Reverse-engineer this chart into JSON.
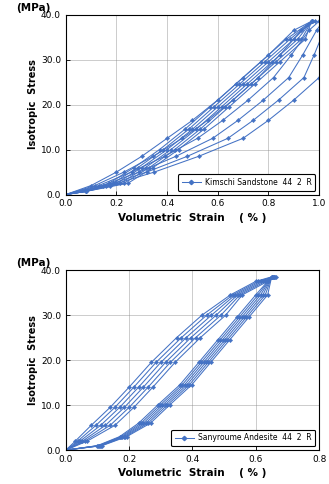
{
  "chart1": {
    "legend": "Kimschi Sandstone  44  2  R",
    "xlim": [
      0.0,
      1.0
    ],
    "ylim": [
      0.0,
      40.0
    ],
    "xlabel": "Volumetric  Strain    ( % )",
    "ylabel_top": "(MPa)",
    "ylabel_main": "Isotropic  Stress",
    "xticks": [
      0.0,
      0.2,
      0.4,
      0.6,
      0.8,
      1.0
    ],
    "yticks": [
      0.0,
      10.0,
      20.0,
      30.0,
      40.0
    ],
    "n_cycles": 6,
    "load_x_base": [
      0.0,
      0.1,
      0.2,
      0.3,
      0.4,
      0.5,
      0.6,
      0.7,
      0.8,
      0.9,
      0.97
    ],
    "load_y_base": [
      0.0,
      2.0,
      5.0,
      8.5,
      12.5,
      16.5,
      21.0,
      26.0,
      31.0,
      36.5,
      38.5
    ],
    "load_x_spread": [
      0.0,
      0.01,
      0.02,
      0.03,
      0.04,
      0.04,
      0.04,
      0.04,
      0.03,
      0.02,
      0.01
    ],
    "unload_x_base": [
      0.97,
      0.87,
      0.77,
      0.67,
      0.57,
      0.47,
      0.37,
      0.27,
      0.17,
      0.08,
      0.0
    ],
    "unload_y_base": [
      38.5,
      34.5,
      29.5,
      24.5,
      19.5,
      14.5,
      10.0,
      6.0,
      2.5,
      0.7,
      0.0
    ],
    "unload_x_spread": [
      0.0,
      0.01,
      0.01,
      0.01,
      0.01,
      0.01,
      0.01,
      0.01,
      0.01,
      0.0,
      0.0
    ]
  },
  "chart2": {
    "legend": "Sanyroume Andesite  44  2  R",
    "xlim": [
      0.0,
      0.8
    ],
    "ylim": [
      0.0,
      40.0
    ],
    "xlabel": "Volumetric  Strain    ( % )",
    "ylabel_top": "(MPa)",
    "ylabel_main": "Isotropic  Stress",
    "xticks": [
      0.0,
      0.2,
      0.4,
      0.6,
      0.8
    ],
    "yticks": [
      0.0,
      10.0,
      20.0,
      30.0,
      40.0
    ],
    "n_cycles": 6,
    "load_x_base": [
      0.0,
      0.03,
      0.08,
      0.14,
      0.2,
      0.27,
      0.35,
      0.43,
      0.52,
      0.6,
      0.65
    ],
    "load_y_base": [
      0.0,
      2.0,
      5.5,
      9.5,
      14.0,
      19.5,
      25.0,
      30.0,
      34.5,
      37.5,
      38.5
    ],
    "load_x_spread": [
      0.0,
      0.005,
      0.01,
      0.01,
      0.01,
      0.01,
      0.01,
      0.01,
      0.005,
      0.005,
      0.002
    ],
    "unload_x_base": [
      0.65,
      0.6,
      0.54,
      0.48,
      0.42,
      0.36,
      0.29,
      0.23,
      0.17,
      0.1,
      0.0
    ],
    "unload_y_base": [
      38.5,
      34.5,
      29.5,
      24.5,
      19.5,
      14.5,
      10.0,
      6.0,
      3.0,
      1.0,
      0.0
    ],
    "unload_x_spread": [
      0.0,
      0.005,
      0.005,
      0.005,
      0.005,
      0.005,
      0.005,
      0.005,
      0.003,
      0.002,
      0.0
    ]
  },
  "line_color": "#4472C4",
  "marker": "D",
  "markersize": 2.2,
  "linewidth": 0.75,
  "legend_fontsize": 5.5,
  "tick_fontsize": 6.5,
  "label_fontsize": 7.5,
  "ylabel_fontsize": 7.0,
  "background_color": "#ffffff"
}
